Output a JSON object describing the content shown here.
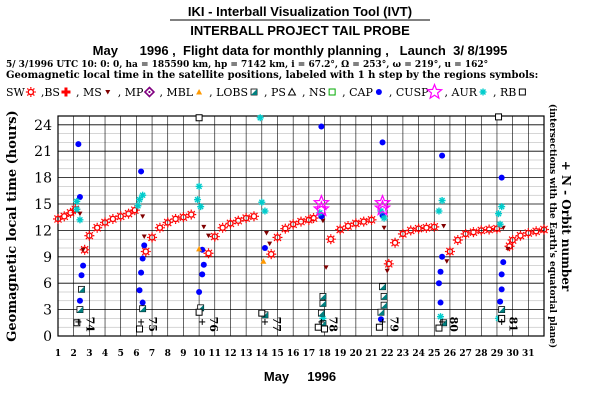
{
  "header": {
    "tool_title": "IKI - Interball Visualization Tool (IVT)",
    "project_title": "INTERBALL PROJECT TAIL PROBE",
    "subtitle": "May      1996 ,  Flight data for monthly planning ,   Launch  3/ 8/1995",
    "orbit_params": "5/ 3/1996 UTC 10: 0: 0, ha = 185590 km, hp =    7142 km, i = 67.2°, Ω = 253°, ω = 219°, u = 162°",
    "legend_caption": "Geomagnetic local time in the satellite positions, labeled with 1 h step by the regions symbols:"
  },
  "legend": [
    {
      "label": "SW",
      "symbol": "sun",
      "color": "#ff0000"
    },
    {
      "label": ",BS",
      "symbol": "cross",
      "color": "#ff0000"
    },
    {
      "label": ", MS",
      "symbol": "tri-down",
      "color": "#800000"
    },
    {
      "label": ", MP",
      "symbol": "diamond",
      "color": "#800080"
    },
    {
      "label": ", MBL",
      "symbol": "tri-up",
      "color": "#ff9900"
    },
    {
      "label": ", LOBS",
      "symbol": "square-split",
      "color": "#008080"
    },
    {
      "label": ", PS",
      "symbol": "tri-outline",
      "color": "#000000"
    },
    {
      "label": ", NS",
      "symbol": "square-outline",
      "color": "#00aa00"
    },
    {
      "label": ", CAP",
      "symbol": "dot",
      "color": "#0000ff"
    },
    {
      "label": ", CUSP",
      "symbol": "star",
      "color": "#ff00ff"
    },
    {
      "label": ", AUR",
      "symbol": "asterisk",
      "color": "#00cccc"
    },
    {
      "label": ", RB",
      "symbol": "square-outline",
      "color": "#000000"
    }
  ],
  "chart_data": {
    "type": "scatter",
    "xlabel": "May     1996",
    "ylabel": "Geomagnetic local time (hours)",
    "right_label": "+ N - Orbit number",
    "right_sublabel": "(intersections with the Earth's equatorial plane)",
    "x_ticks": [
      "1",
      "2",
      "3",
      "4",
      "5",
      "6",
      "7",
      "8",
      "9",
      "10",
      "11",
      "12",
      "13",
      "14",
      "15",
      "16",
      "17",
      "18",
      "19",
      "20",
      "21",
      "22",
      "23",
      "24",
      "25",
      "26",
      "27",
      "28",
      "29",
      "30",
      "31"
    ],
    "y_ticks": [
      "0",
      "3",
      "6",
      "9",
      "12",
      "15",
      "18",
      "21",
      "24"
    ],
    "xlim": [
      1,
      32
    ],
    "ylim": [
      0,
      25
    ],
    "grid": true,
    "orbits": [
      {
        "day": 2.3,
        "label": "74"
      },
      {
        "day": 6.3,
        "label": "75"
      },
      {
        "day": 10.2,
        "label": "76"
      },
      {
        "day": 14.2,
        "label": "77"
      },
      {
        "day": 17.8,
        "label": "78"
      },
      {
        "day": 21.7,
        "label": "79"
      },
      {
        "day": 25.5,
        "label": "80"
      },
      {
        "day": 29.3,
        "label": "81"
      }
    ],
    "series": [
      {
        "type": "SW",
        "points": [
          [
            1,
            13.3
          ],
          [
            1.4,
            13.6
          ],
          [
            1.8,
            14.0
          ],
          [
            2.1,
            14.4
          ],
          [
            2.7,
            9.8
          ],
          [
            3.0,
            11.4
          ],
          [
            3.5,
            12.3
          ],
          [
            4.0,
            12.9
          ],
          [
            4.5,
            13.3
          ],
          [
            5.0,
            13.6
          ],
          [
            5.5,
            13.9
          ],
          [
            5.9,
            14.3
          ],
          [
            6.6,
            9.6
          ],
          [
            7.0,
            11.2
          ],
          [
            7.5,
            12.3
          ],
          [
            8.0,
            12.9
          ],
          [
            8.5,
            13.3
          ],
          [
            9.0,
            13.5
          ],
          [
            9.5,
            13.8
          ],
          [
            10.6,
            9.4
          ],
          [
            11.0,
            11.3
          ],
          [
            11.5,
            12.3
          ],
          [
            12.0,
            12.8
          ],
          [
            12.5,
            13.1
          ],
          [
            13.0,
            13.4
          ],
          [
            13.5,
            13.6
          ],
          [
            14.6,
            9.3
          ],
          [
            15.0,
            11.2
          ],
          [
            15.5,
            12.2
          ],
          [
            16.0,
            12.7
          ],
          [
            16.5,
            13.0
          ],
          [
            17.0,
            13.2
          ],
          [
            17.3,
            13.4
          ],
          [
            18.4,
            11.0
          ],
          [
            19.0,
            12.1
          ],
          [
            19.5,
            12.5
          ],
          [
            20.0,
            12.8
          ],
          [
            20.5,
            13.0
          ],
          [
            21.0,
            13.2
          ],
          [
            22.1,
            8.2
          ],
          [
            22.5,
            10.6
          ],
          [
            23.0,
            11.6
          ],
          [
            23.5,
            12.0
          ],
          [
            24.0,
            12.2
          ],
          [
            24.5,
            12.3
          ],
          [
            25.0,
            12.4
          ],
          [
            26.0,
            9.6
          ],
          [
            26.5,
            10.9
          ],
          [
            27.0,
            11.6
          ],
          [
            27.5,
            11.8
          ],
          [
            28.0,
            12.0
          ],
          [
            28.5,
            12.1
          ],
          [
            29.0,
            12.2
          ],
          [
            29.8,
            10.2
          ],
          [
            30.0,
            10.9
          ],
          [
            30.5,
            11.4
          ],
          [
            31.0,
            11.7
          ],
          [
            31.5,
            11.9
          ],
          [
            32.0,
            12.1
          ]
        ]
      },
      {
        "type": "MS",
        "points": [
          [
            2.4,
            13.9
          ],
          [
            6.4,
            13.6
          ],
          [
            10.3,
            12.4
          ],
          [
            14.3,
            11.7
          ],
          [
            17.9,
            13.1
          ],
          [
            21.8,
            12.3
          ],
          [
            25.6,
            12.5
          ],
          [
            29.4,
            12.3
          ],
          [
            2.6,
            9.8
          ],
          [
            6.5,
            11.3
          ],
          [
            10.6,
            11.4
          ],
          [
            14.5,
            10.5
          ],
          [
            18.1,
            7.8
          ],
          [
            22.0,
            7.4
          ],
          [
            25.8,
            8.5
          ],
          [
            29.7,
            9.9
          ]
        ]
      },
      {
        "type": "CAP",
        "points": [
          [
            2.3,
            21.8
          ],
          [
            2.4,
            15.8
          ],
          [
            2.6,
            8.0
          ],
          [
            2.5,
            6.9
          ],
          [
            2.4,
            4.0
          ],
          [
            6.3,
            18.7
          ],
          [
            6.5,
            10.3
          ],
          [
            6.4,
            8.8
          ],
          [
            6.3,
            7.2
          ],
          [
            6.2,
            5.2
          ],
          [
            6.4,
            3.8
          ],
          [
            10.2,
            9.8
          ],
          [
            10.3,
            8.1
          ],
          [
            10.2,
            7.0
          ],
          [
            10.0,
            5.0
          ],
          [
            14.2,
            10.0
          ],
          [
            17.8,
            23.8
          ],
          [
            17.8,
            13.6
          ],
          [
            21.7,
            22.0
          ],
          [
            21.7,
            13.7
          ],
          [
            21.6,
            1.9
          ],
          [
            25.5,
            20.5
          ],
          [
            25.5,
            9.0
          ],
          [
            25.4,
            7.3
          ],
          [
            25.3,
            6.0
          ],
          [
            25.4,
            3.8
          ],
          [
            29.3,
            18.0
          ],
          [
            29.4,
            8.4
          ],
          [
            29.3,
            7.0
          ],
          [
            29.3,
            5.3
          ],
          [
            29.2,
            3.9
          ]
        ]
      },
      {
        "type": "AUR",
        "points": [
          [
            2.2,
            15.3
          ],
          [
            2.2,
            14.4
          ],
          [
            2.4,
            13.2
          ],
          [
            6.1,
            14.8
          ],
          [
            6.2,
            15.5
          ],
          [
            6.4,
            16.0
          ],
          [
            10.0,
            17.0
          ],
          [
            9.9,
            15.5
          ],
          [
            10.1,
            14.7
          ],
          [
            13.9,
            24.8
          ],
          [
            14.0,
            15.2
          ],
          [
            14.2,
            14.2
          ],
          [
            17.7,
            14.0
          ],
          [
            17.9,
            2.0
          ],
          [
            21.6,
            14.2
          ],
          [
            21.8,
            13.4
          ],
          [
            25.5,
            15.4
          ],
          [
            25.3,
            14.2
          ],
          [
            25.4,
            2.2
          ],
          [
            29.3,
            14.7
          ],
          [
            29.1,
            13.9
          ],
          [
            29.2,
            12.7
          ],
          [
            29.1,
            2.0
          ]
        ]
      },
      {
        "type": "CUSP",
        "points": [
          [
            17.8,
            15.1
          ],
          [
            17.8,
            14.4
          ],
          [
            21.7,
            15.1
          ],
          [
            21.7,
            14.5
          ]
        ]
      },
      {
        "type": "MBL",
        "points": [
          [
            10.0,
            9.9
          ],
          [
            14.1,
            8.5
          ]
        ]
      },
      {
        "type": "LOBS",
        "points": [
          [
            2.5,
            5.3
          ],
          [
            2.4,
            3.0
          ],
          [
            6.4,
            3.1
          ],
          [
            10.1,
            3.2
          ],
          [
            14.2,
            2.4
          ],
          [
            17.9,
            4.5
          ],
          [
            17.9,
            3.7
          ],
          [
            17.8,
            2.6
          ],
          [
            17.9,
            1.4
          ],
          [
            21.7,
            5.6
          ],
          [
            21.8,
            4.5
          ],
          [
            21.8,
            3.5
          ],
          [
            21.6,
            2.7
          ],
          [
            25.6,
            1.5
          ],
          [
            29.3,
            3.0
          ]
        ]
      },
      {
        "type": "RB",
        "points": [
          [
            2.2,
            1.5
          ],
          [
            6.2,
            0.8
          ],
          [
            10.0,
            24.8
          ],
          [
            10.0,
            2.7
          ],
          [
            14.0,
            2.6
          ],
          [
            17.6,
            1.0
          ],
          [
            18.0,
            0.8
          ],
          [
            21.5,
            1.0
          ],
          [
            25.3,
            0.9
          ],
          [
            29.1,
            24.9
          ],
          [
            29.3,
            2.0
          ]
        ]
      }
    ]
  }
}
